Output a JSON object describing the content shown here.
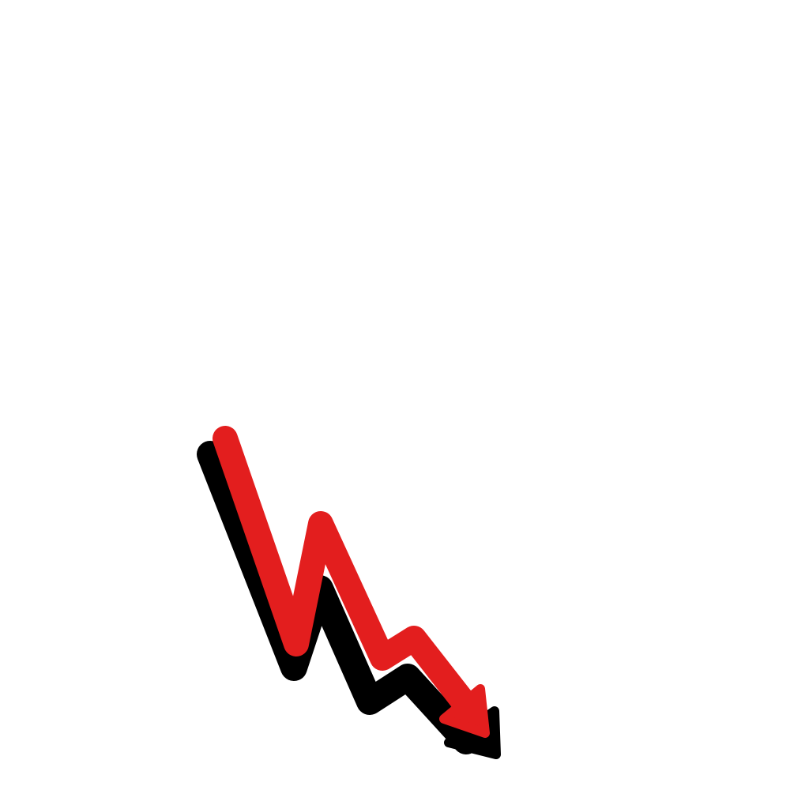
{
  "illustration": {
    "subject": "down-trend-arrow-icon",
    "colors": {
      "background": "#ffffff",
      "arrow": "#e31e1e",
      "shadow": "#000000"
    }
  }
}
